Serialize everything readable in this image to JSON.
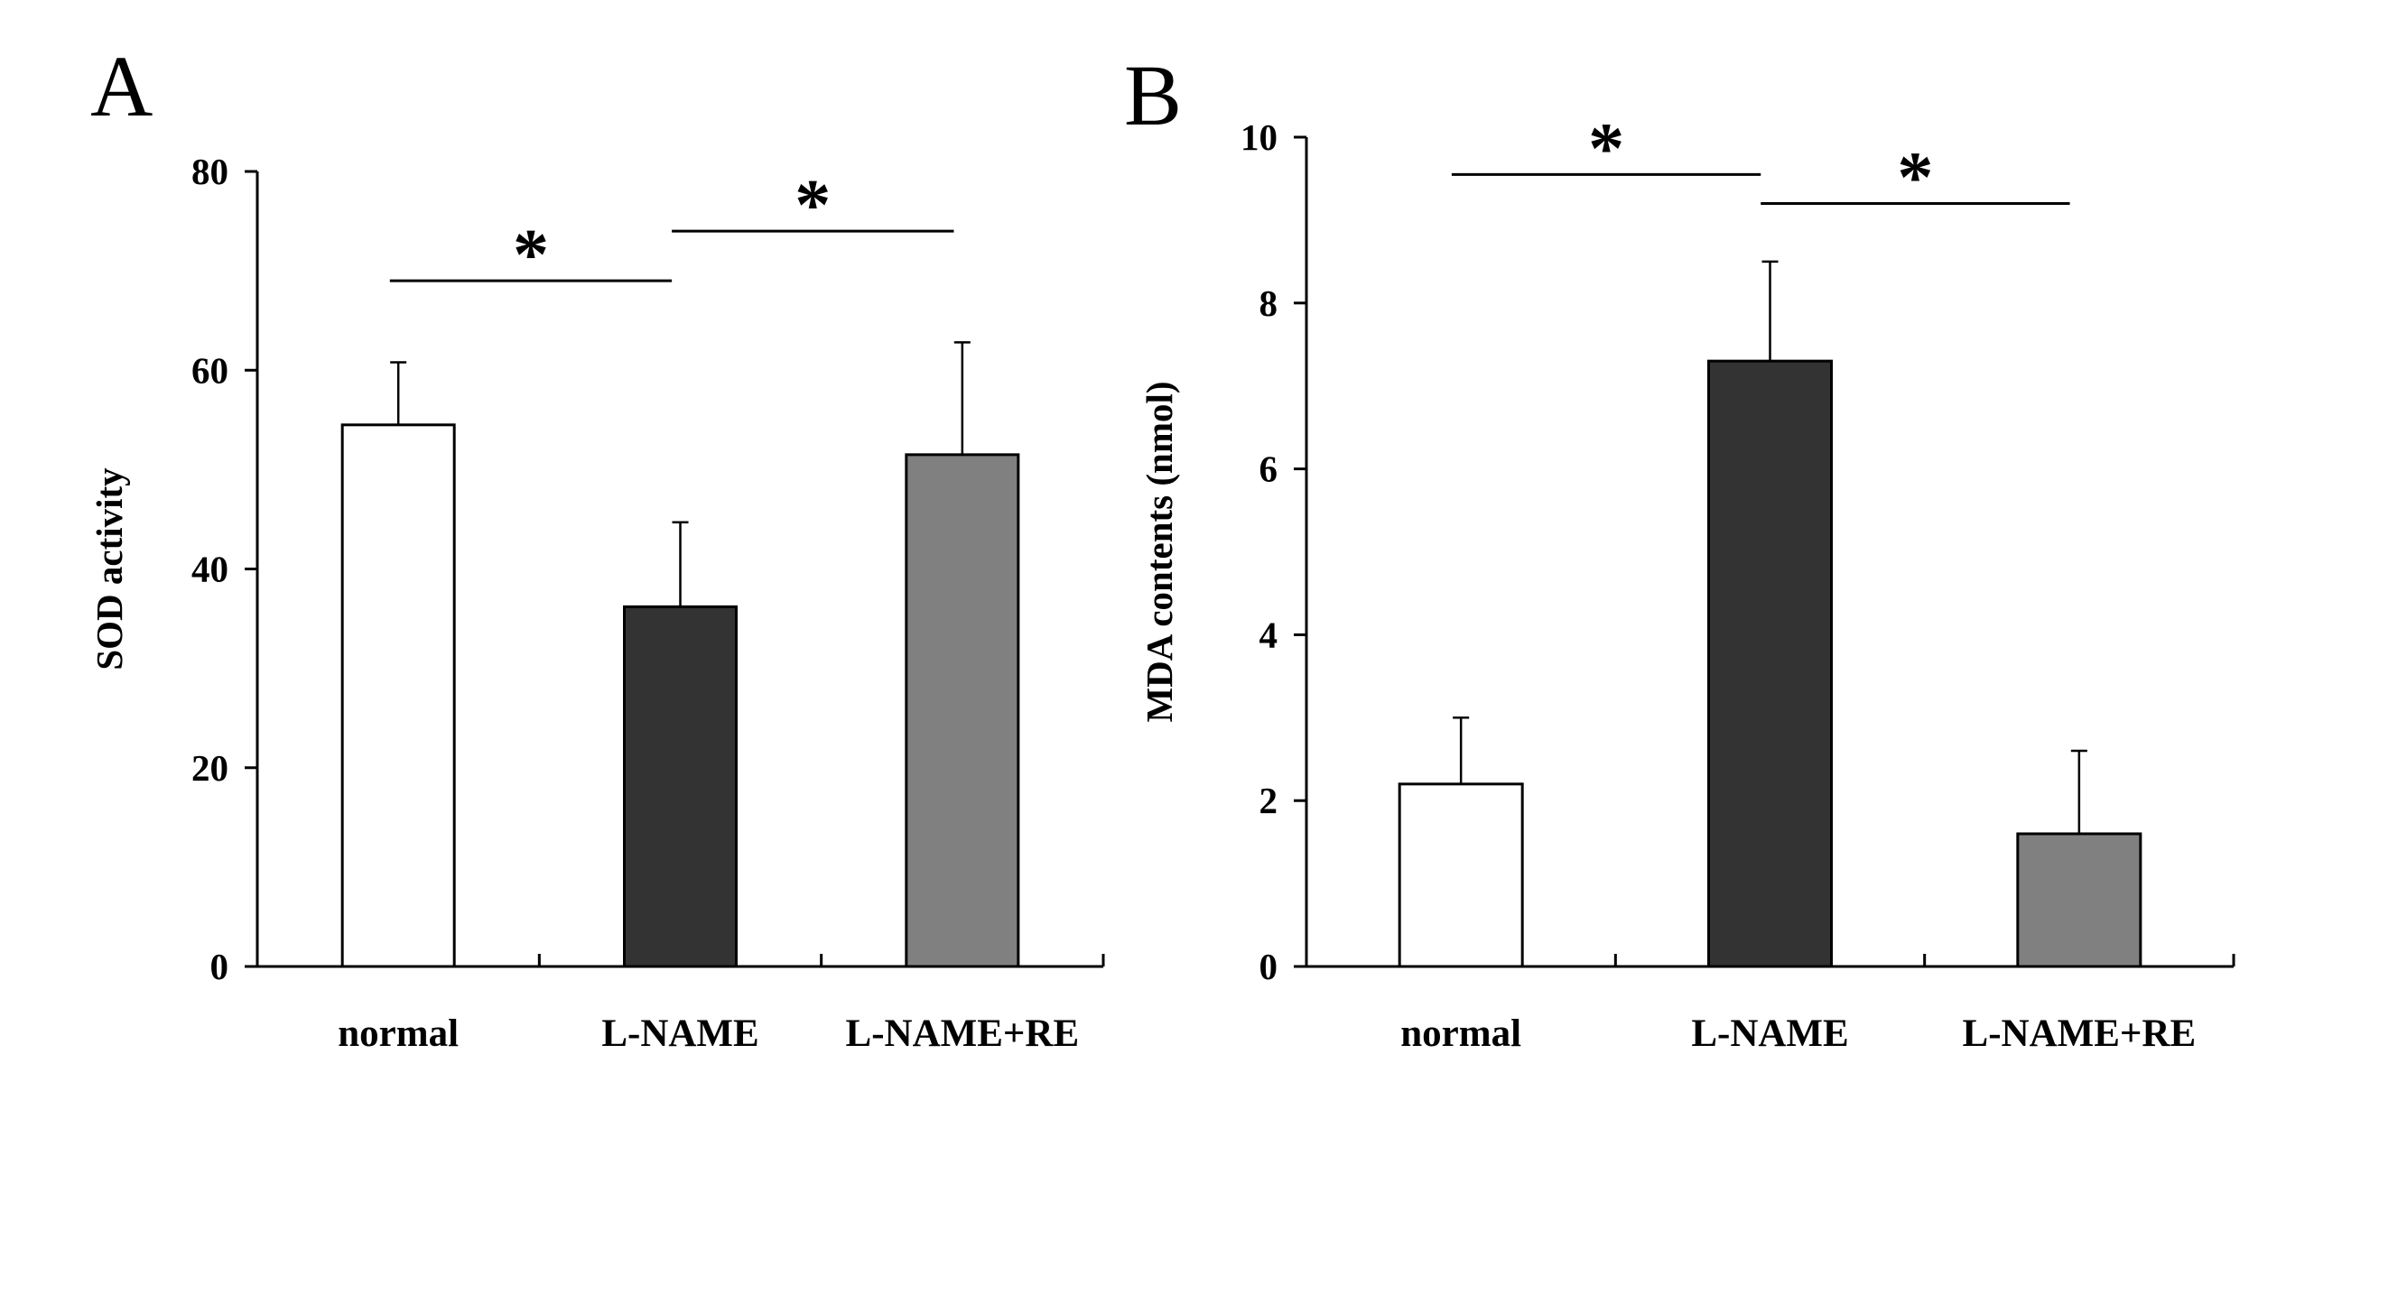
{
  "chart_data": [
    {
      "panel": "A",
      "type": "bar",
      "title": "",
      "xlabel": "",
      "ylabel": "SOD activity",
      "ylim": [
        0,
        80
      ],
      "yticks": [
        0,
        20,
        40,
        60,
        80
      ],
      "grid": false,
      "categories": [
        "normal",
        "L-NAME",
        "L-NAME+RE"
      ],
      "series": [
        {
          "name": "SOD activity",
          "values": [
            54.5,
            36.2,
            51.5
          ],
          "errors": [
            6.3,
            8.5,
            11.3
          ],
          "colors": [
            "#ffffff",
            "#333333",
            "#808080"
          ]
        }
      ],
      "annotations": [
        {
          "from": "normal",
          "to": "L-NAME",
          "y": 69,
          "text": "*"
        },
        {
          "from": "L-NAME",
          "to": "L-NAME+RE",
          "y": 74,
          "text": "*"
        }
      ]
    },
    {
      "panel": "B",
      "type": "bar",
      "title": "",
      "xlabel": "",
      "ylabel": "MDA contents (nmol)",
      "ylim": [
        0,
        10
      ],
      "yticks": [
        0,
        2,
        4,
        6,
        8,
        10
      ],
      "grid": false,
      "categories": [
        "normal",
        "L-NAME",
        "L-NAME+RE"
      ],
      "series": [
        {
          "name": "MDA contents",
          "values": [
            2.2,
            7.3,
            1.6
          ],
          "errors": [
            0.8,
            1.2,
            1.0
          ],
          "colors": [
            "#ffffff",
            "#333333",
            "#808080"
          ]
        }
      ],
      "annotations": [
        {
          "from": "normal",
          "to": "L-NAME",
          "y": 9.55,
          "text": "*"
        },
        {
          "from": "L-NAME",
          "to": "L-NAME+RE",
          "y": 9.2,
          "text": "*"
        }
      ]
    }
  ]
}
